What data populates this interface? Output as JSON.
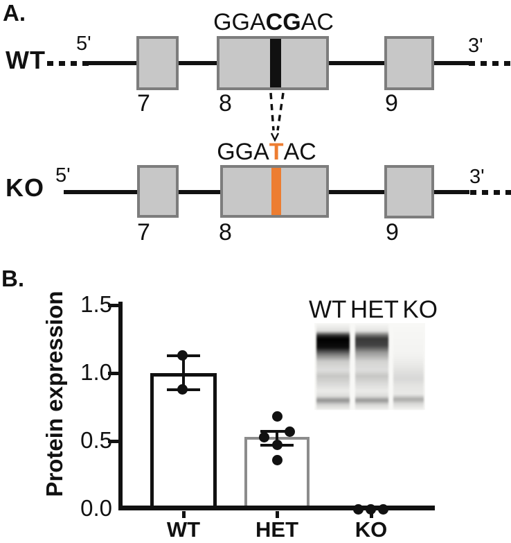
{
  "panel_a": {
    "label": "A.",
    "rows": {
      "wt": {
        "name": "WT",
        "five_prime": "5'",
        "three_prime": "3'",
        "sequence_pre": "GGA",
        "sequence_mut": "CG",
        "sequence_post": "AC",
        "exon_left": "7",
        "exon_mid": "8",
        "exon_right": "9"
      },
      "ko": {
        "name": "KO",
        "five_prime": "5'",
        "three_prime": "3'",
        "sequence_pre": "GGA",
        "sequence_mut": "T",
        "sequence_post": "AC",
        "exon_left": "7",
        "exon_mid": "8",
        "exon_right": "9"
      }
    },
    "colors": {
      "wt_variant_bar": "#111111",
      "ko_variant_bar": "#ED7D31",
      "exon_fill": "#C7C7C7",
      "exon_border": "#7D7D7D"
    }
  },
  "panel_b": {
    "label": "B.",
    "blot_lanes": [
      "WT",
      "HET",
      "KO"
    ]
  },
  "chart_data": {
    "type": "bar",
    "title": "",
    "xlabel": "",
    "ylabel": "Protein expression",
    "categories": [
      "WT",
      "HET",
      "KO"
    ],
    "values": [
      1.0,
      0.53,
      0.0
    ],
    "scatter_points": {
      "WT": [
        1.13,
        0.88
      ],
      "HET": [
        0.68,
        0.57,
        0.53,
        0.47,
        0.36
      ],
      "KO": [
        0.0,
        0.0,
        0.0
      ]
    },
    "error_bars": {
      "WT": {
        "low": 0.88,
        "high": 1.13
      },
      "HET": {
        "low": 0.47,
        "high": 0.57
      }
    },
    "yticks": [
      "1.5",
      "1.0",
      "0.5",
      "0.0"
    ],
    "ylim": [
      0.0,
      1.5
    ],
    "grid": false,
    "legend": null,
    "bar_fill": "#FFFFFF",
    "bar_border_wt": "#111111",
    "bar_border_het": "#8C8C8C",
    "point_color": "#111111",
    "inset": "western-blot"
  }
}
